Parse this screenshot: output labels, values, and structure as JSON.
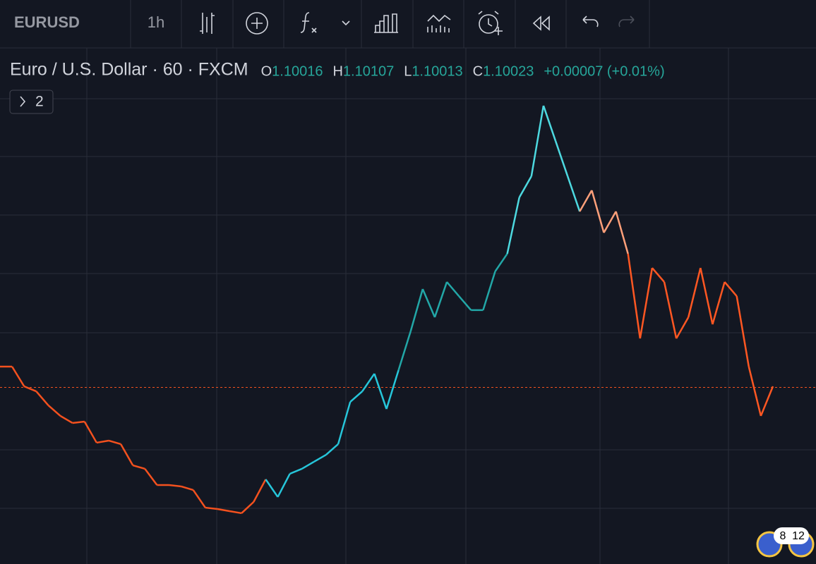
{
  "toolbar": {
    "symbol": "EURUSD",
    "interval": "1h"
  },
  "chart_data": {
    "type": "line",
    "title": "Euro / U.S. Dollar · 60 · FXCM",
    "ohlc_labels": [
      "O",
      "H",
      "L",
      "C"
    ],
    "ohlc": [
      1.10016,
      1.10107,
      1.10013,
      1.10023
    ],
    "change": "+0.00007 (+0.01%)",
    "indicators_button": "2",
    "ylim": [
      1.085,
      1.1295
    ],
    "values": [
      1.10202,
      1.10202,
      1.10032,
      1.09989,
      1.09868,
      1.09777,
      1.09716,
      1.09728,
      1.09546,
      1.09564,
      1.09534,
      1.09351,
      1.09321,
      1.09181,
      1.09181,
      1.09169,
      1.09138,
      1.08986,
      1.08974,
      1.08956,
      1.08938,
      1.09035,
      1.0923,
      1.09078,
      1.09278,
      1.09321,
      1.09382,
      1.09442,
      1.09534,
      1.09898,
      1.09989,
      1.10141,
      1.09837,
      1.10172,
      1.10506,
      1.10871,
      1.10628,
      1.10932,
      1.1081,
      1.10689,
      1.10689,
      1.11023,
      1.11175,
      1.11661,
      1.11844,
      1.12452,
      1.12148,
      1.11844,
      1.1154,
      1.11722,
      1.11357,
      1.1154,
      1.11175,
      1.10445,
      1.11053,
      1.10932,
      1.10445,
      1.10628,
      1.11053,
      1.10567,
      1.10932,
      1.1081,
      1.10202,
      1.09777,
      1.10032
    ],
    "colors": [
      "#f4511e",
      "#f4511e",
      "#f4511e",
      "#f4511e",
      "#f4511e",
      "#f4511e",
      "#f4511e",
      "#f4511e",
      "#f4511e",
      "#f4511e",
      "#f4511e",
      "#f4511e",
      "#f4511e",
      "#f4511e",
      "#f4511e",
      "#f4511e",
      "#f4511e",
      "#f4511e",
      "#f4511e",
      "#f4511e",
      "#f4511e",
      "#f4511e",
      "#f4511e",
      "#26c6da",
      "#26c6da",
      "#26c6da",
      "#26c6da",
      "#26c6da",
      "#26c6da",
      "#26c6da",
      "#26c6da",
      "#26c6da",
      "#26c6da",
      "#26c6da",
      "#22a7a7",
      "#22a7a7",
      "#22a7a7",
      "#22a7a7",
      "#22a7a7",
      "#22a7a7",
      "#22a7a7",
      "#22a7a7",
      "#22a7a7",
      "#4dd9e0",
      "#4dd9e0",
      "#4dd9e0",
      "#4dd9e0",
      "#4dd9e0",
      "#4dd9e0",
      "#ffa07a",
      "#ffa07a",
      "#ffa07a",
      "#ffa07a",
      "#ff5722",
      "#ff5722",
      "#ff5722",
      "#ff5722",
      "#ff5722",
      "#ff5722",
      "#ff5722",
      "#ff5722",
      "#ff5722",
      "#ff5722",
      "#ff5722",
      "#ff5722"
    ],
    "last_price_color": "#f4511e"
  },
  "badges": [
    "8",
    "12"
  ]
}
